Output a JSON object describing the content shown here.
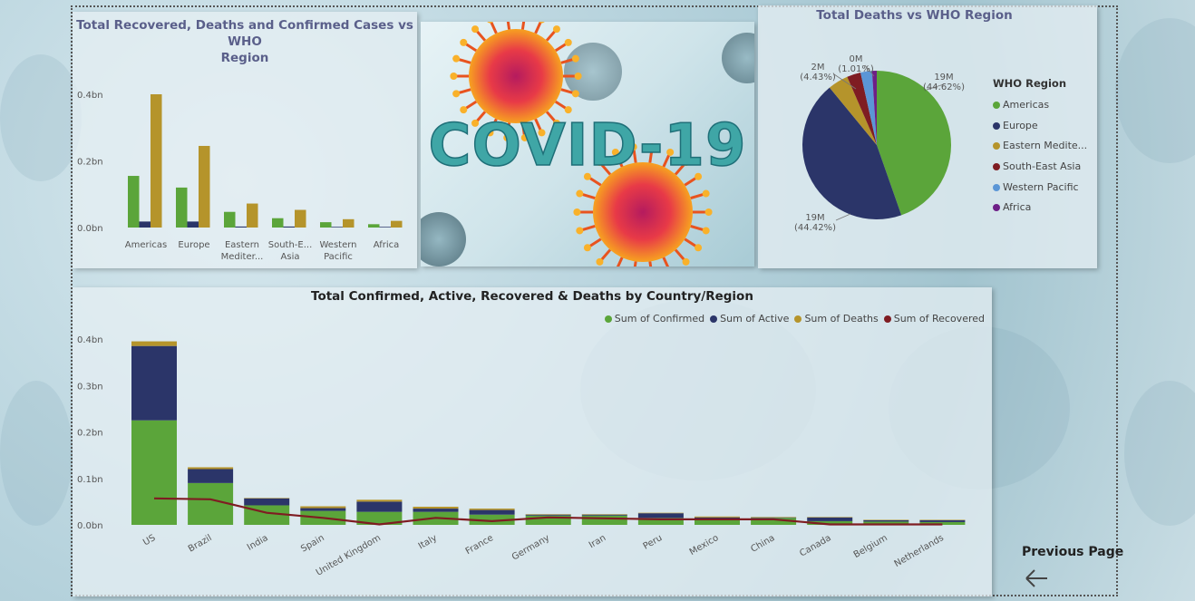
{
  "colors": {
    "green": "#5ba53a",
    "navy": "#2b3569",
    "gold": "#b5942b",
    "maroon": "#7f1c22",
    "blue": "#5b96d6",
    "purple": "#6e1f87"
  },
  "chart1": {
    "title_line1": "Total Recovered, Deaths and Confirmed Cases vs WHO",
    "title_line2": "Region",
    "chart_data": {
      "type": "bar",
      "categories": [
        "Americas",
        "Europe",
        "Eastern Mediter...",
        "South-E... Asia",
        "Western Pacific",
        "Africa"
      ],
      "category_lines": [
        [
          "Americas"
        ],
        [
          "Europe"
        ],
        [
          "Eastern",
          "Mediter..."
        ],
        [
          "South-E...",
          "Asia"
        ],
        [
          "Western",
          "Pacific"
        ],
        [
          "Africa"
        ]
      ],
      "series": [
        {
          "color": "green",
          "values": [
            0.155,
            0.12,
            0.047,
            0.028,
            0.016,
            0.01
          ]
        },
        {
          "color": "navy",
          "values": [
            0.018,
            0.018,
            0.003,
            0.003,
            0.002,
            0.002
          ]
        },
        {
          "color": "gold",
          "values": [
            0.4,
            0.245,
            0.072,
            0.053,
            0.025,
            0.02
          ]
        }
      ],
      "yticks": [
        "0.4bn",
        "0.2bn",
        "0.0bn"
      ],
      "ytick_values": [
        0.4,
        0.2,
        0.0
      ],
      "ylim": [
        0,
        0.4
      ]
    }
  },
  "image": {
    "caption": "COVID-19"
  },
  "chart2": {
    "title": "Total Deaths vs WHO Region",
    "chart_data": {
      "type": "pie",
      "labels": [
        "Americas",
        "Europe",
        "Eastern Medite...",
        "South-East Asia",
        "Western Pacific",
        "Africa"
      ],
      "colors": [
        "green",
        "navy",
        "gold",
        "maroon",
        "blue",
        "purple"
      ],
      "values": [
        44.62,
        44.42,
        4.43,
        3.0,
        2.5,
        1.01
      ],
      "data_labels": [
        {
          "value": "19M",
          "pct": "(44.62%)"
        },
        {
          "value": "19M",
          "pct": "(44.42%)"
        },
        {
          "value": "2M",
          "pct": "(4.43%)"
        },
        {
          "value": "0M",
          "pct": "(1.01%)"
        }
      ]
    },
    "legend_title": "WHO Region"
  },
  "chart3": {
    "title": "Total Confirmed, Active, Recovered & Deaths by Country/Region",
    "legend": [
      {
        "label": "Sum of Confirmed",
        "color": "green"
      },
      {
        "label": "Sum of Active",
        "color": "navy"
      },
      {
        "label": "Sum of Deaths",
        "color": "gold"
      },
      {
        "label": "Sum of Recovered",
        "color": "maroon"
      }
    ],
    "chart_data": {
      "type": "bar",
      "categories": [
        "US",
        "Brazil",
        "India",
        "Spain",
        "United Kingdom",
        "Italy",
        "France",
        "Germany",
        "Iran",
        "Peru",
        "Mexico",
        "China",
        "Canada",
        "Belgium",
        "Netherlands"
      ],
      "series": [
        {
          "name": "Sum of Confirmed",
          "color": "green",
          "values": [
            0.225,
            0.09,
            0.042,
            0.03,
            0.028,
            0.028,
            0.022,
            0.02,
            0.02,
            0.015,
            0.012,
            0.015,
            0.008,
            0.007,
            0.006
          ]
        },
        {
          "name": "Sum of Active",
          "color": "navy",
          "values": [
            0.16,
            0.03,
            0.015,
            0.006,
            0.022,
            0.007,
            0.01,
            0.002,
            0.002,
            0.01,
            0.004,
            0.001,
            0.008,
            0.003,
            0.004
          ]
        },
        {
          "name": "Sum of Deaths",
          "color": "gold",
          "values": [
            0.01,
            0.004,
            0.001,
            0.004,
            0.004,
            0.004,
            0.003,
            0.001,
            0.001,
            0.001,
            0.002,
            0.001,
            0.001,
            0.001,
            0.001
          ]
        },
        {
          "name": "Sum of Recovered",
          "color": "maroon",
          "type": "line",
          "values": [
            0.057,
            0.055,
            0.026,
            0.015,
            0.001,
            0.015,
            0.008,
            0.016,
            0.014,
            0.012,
            0.012,
            0.012,
            0.001,
            0.001,
            0.001
          ]
        }
      ],
      "yticks": [
        "0.4bn",
        "0.3bn",
        "0.2bn",
        "0.1bn",
        "0.0bn"
      ],
      "ytick_values": [
        0.4,
        0.3,
        0.2,
        0.1,
        0.0
      ],
      "ylim": [
        0,
        0.4
      ]
    }
  },
  "nav": {
    "prev_label": "Previous Page"
  }
}
